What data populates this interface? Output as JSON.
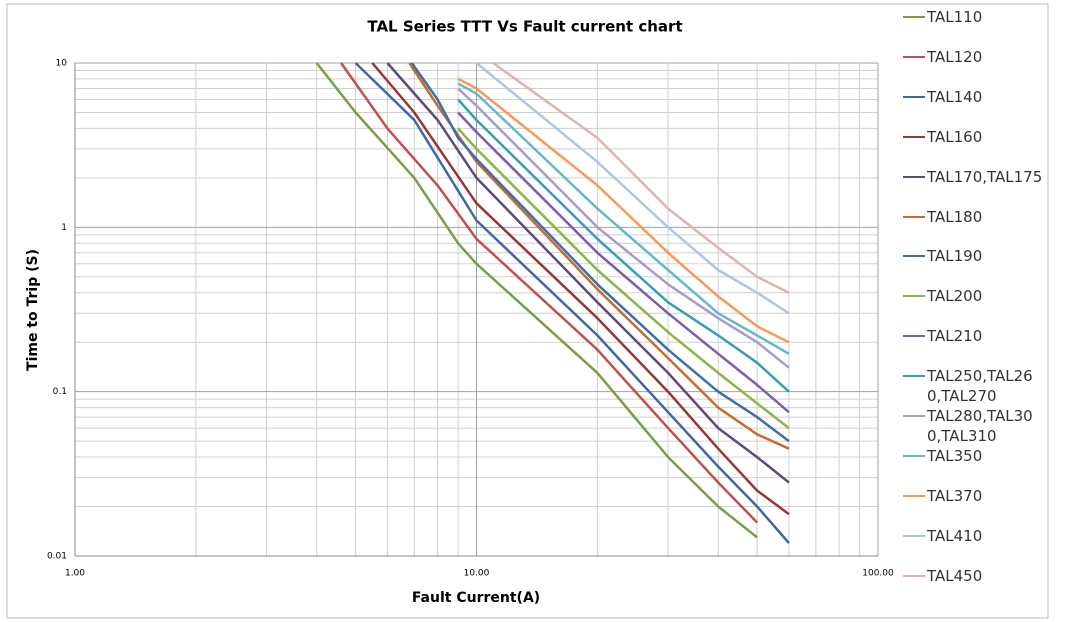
{
  "chart_data": {
    "type": "line",
    "title": "TAL  Series TTT Vs Fault current chart",
    "x_label": "Fault Current(A)",
    "y_label": "Time to Trip (S)",
    "xscale": "log",
    "yscale": "log",
    "grid": true,
    "minor_grid": true,
    "legend": "right",
    "xlim": [
      1,
      100
    ],
    "ylim": [
      0.01,
      10
    ],
    "xticks": [
      {
        "value": 1,
        "label": "1.00"
      },
      {
        "value": 10,
        "label": "10.00"
      },
      {
        "value": 100,
        "label": "100.00"
      }
    ],
    "yticks": [
      0.01,
      0.1,
      1,
      10
    ],
    "series": [
      {
        "name": "TAL110",
        "color": "#77a043",
        "x": [
          4,
          5,
          7,
          9,
          10,
          20,
          30,
          40,
          50
        ],
        "values": [
          10,
          5,
          2,
          0.8,
          0.6,
          0.13,
          0.04,
          0.02,
          0.013
        ]
      },
      {
        "name": "TAL120",
        "color": "#c0504d",
        "x": [
          4.6,
          6,
          8,
          10,
          20,
          30,
          40,
          50
        ],
        "values": [
          10,
          4,
          1.8,
          0.85,
          0.18,
          0.06,
          0.028,
          0.016
        ]
      },
      {
        "name": "TAL140",
        "color": "#3f67a6",
        "x": [
          5,
          7,
          10,
          20,
          30,
          40,
          50,
          60
        ],
        "values": [
          10,
          4.5,
          1.1,
          0.22,
          0.075,
          0.035,
          0.02,
          0.012
        ]
      },
      {
        "name": "TAL160",
        "color": "#953735",
        "x": [
          5.5,
          7,
          10,
          20,
          30,
          40,
          50,
          60
        ],
        "values": [
          10,
          5,
          1.4,
          0.28,
          0.1,
          0.045,
          0.025,
          0.018
        ]
      },
      {
        "name": "TAL170,TAL175",
        "color": "#604a7b",
        "x": [
          6,
          8,
          10,
          20,
          30,
          40,
          50,
          60
        ],
        "values": [
          10,
          4.5,
          2,
          0.35,
          0.13,
          0.06,
          0.04,
          0.028
        ]
      },
      {
        "name": "TAL180",
        "color": "#c96b2e",
        "x": [
          6.8,
          8,
          10,
          20,
          30,
          40,
          50,
          60
        ],
        "values": [
          10,
          5.5,
          2.5,
          0.42,
          0.16,
          0.08,
          0.055,
          0.045
        ]
      },
      {
        "name": "TAL190",
        "color": "#3e6fa8",
        "x": [
          6.9,
          8,
          9,
          10,
          20,
          30,
          40,
          50,
          60
        ],
        "values": [
          10,
          6,
          3.5,
          2.6,
          0.45,
          0.18,
          0.1,
          0.07,
          0.05
        ]
      },
      {
        "name": "TAL200",
        "color": "#8db446",
        "x": [
          9,
          10,
          20,
          30,
          40,
          50,
          60
        ],
        "values": [
          4,
          3,
          0.55,
          0.23,
          0.13,
          0.085,
          0.06
        ]
      },
      {
        "name": "TAL210",
        "color": "#7b5ea7",
        "x": [
          9,
          10,
          20,
          30,
          40,
          50,
          60
        ],
        "values": [
          5,
          3.8,
          0.7,
          0.3,
          0.17,
          0.11,
          0.075
        ]
      },
      {
        "name": "TAL250,TAL260,TAL270",
        "color": "#31a0b5",
        "x": [
          9,
          10,
          20,
          30,
          40,
          50,
          60
        ],
        "values": [
          6,
          4.5,
          0.85,
          0.35,
          0.22,
          0.15,
          0.1
        ]
      },
      {
        "name": "TAL280,TAL300,TAL310",
        "color": "#a99bc9",
        "x": [
          9,
          10,
          20,
          30,
          40,
          50,
          60
        ],
        "values": [
          7,
          5.5,
          1,
          0.45,
          0.28,
          0.2,
          0.14
        ]
      },
      {
        "name": "TAL350",
        "color": "#63b9c9",
        "x": [
          9,
          10,
          20,
          30,
          40,
          50,
          60
        ],
        "values": [
          7.5,
          6.5,
          1.3,
          0.55,
          0.3,
          0.22,
          0.17
        ]
      },
      {
        "name": "TAL370",
        "color": "#f79a55",
        "x": [
          9,
          10,
          20,
          30,
          40,
          50,
          60
        ],
        "values": [
          8,
          7,
          1.8,
          0.7,
          0.38,
          0.25,
          0.2
        ]
      },
      {
        "name": "TAL410",
        "color": "#b2c5e0",
        "x": [
          10,
          20,
          30,
          40,
          50,
          60
        ],
        "values": [
          10,
          2.5,
          1,
          0.55,
          0.4,
          0.3
        ]
      },
      {
        "name": "TAL450",
        "color": "#e0b2b0",
        "x": [
          11,
          20,
          30,
          40,
          50,
          60
        ],
        "values": [
          10,
          3.5,
          1.3,
          0.75,
          0.5,
          0.4
        ]
      }
    ]
  }
}
